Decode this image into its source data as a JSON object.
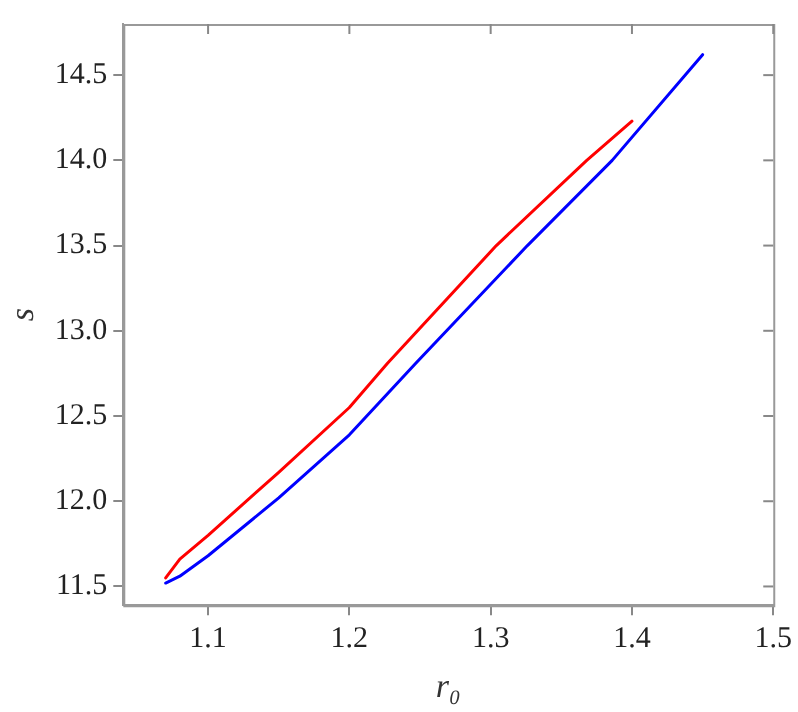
{
  "chart_data": {
    "type": "line",
    "xlabel": "r₀",
    "ylabel": "s",
    "xlim": [
      1.04,
      1.5
    ],
    "ylim": [
      11.39,
      14.8
    ],
    "xticks": [
      1.1,
      1.2,
      1.3,
      1.4,
      1.5
    ],
    "yticks": [
      {
        "value": 11.5,
        "label": "11.5"
      },
      {
        "value": 12,
        "label": "12.0"
      },
      {
        "value": 12.5,
        "label": "12.5"
      },
      {
        "value": 13,
        "label": "13.0"
      },
      {
        "value": 13.5,
        "label": "13.5"
      },
      {
        "value": 14,
        "label": "14.0"
      },
      {
        "value": 14.5,
        "label": "14.5"
      }
    ],
    "grid": false,
    "legend": false,
    "marker": "none",
    "line_style": "solid",
    "series": [
      {
        "color": "#ff0000",
        "x": [
          1.07,
          1.08,
          1.1,
          1.15,
          1.2,
          1.227,
          1.304,
          1.368,
          1.4
        ],
        "values": [
          11.55,
          11.66,
          11.8,
          12.17,
          12.55,
          12.81,
          13.5,
          14.0,
          14.23
        ]
      },
      {
        "color": "#0000ff",
        "x": [
          1.07,
          1.08,
          1.1,
          1.15,
          1.2,
          1.247,
          1.326,
          1.386,
          1.45
        ],
        "values": [
          11.52,
          11.56,
          11.68,
          12.02,
          12.39,
          12.81,
          13.5,
          14.0,
          14.62
        ]
      }
    ]
  }
}
